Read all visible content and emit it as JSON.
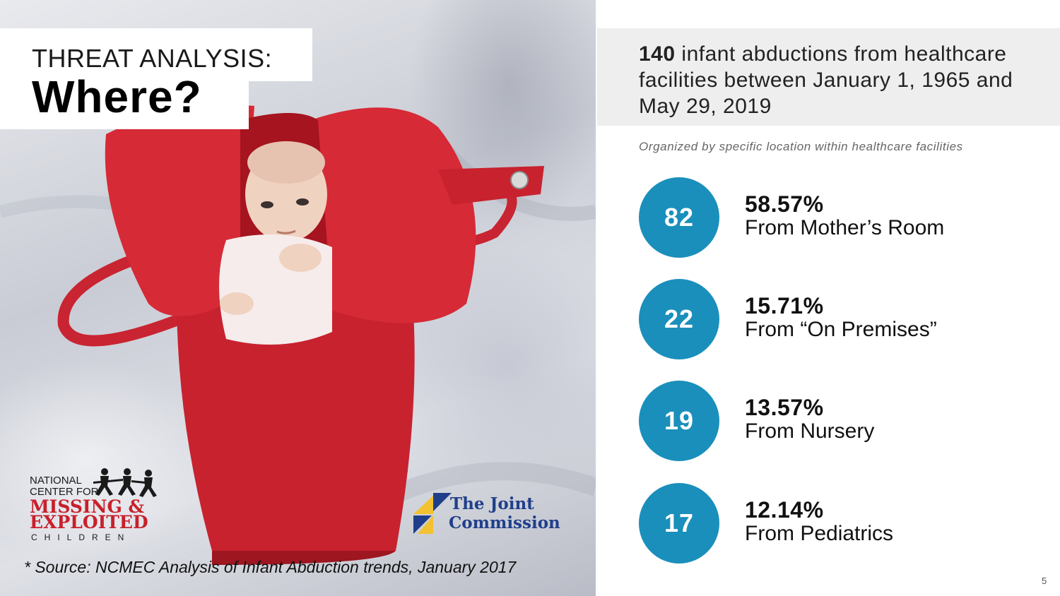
{
  "title": {
    "line1": "THREAT ANALYSIS:",
    "line2": "Where?"
  },
  "header": {
    "count": "140",
    "text": " infant abductions from healthcare facilities between January 1, 1965 and May 29, 2019"
  },
  "subtitle": "Organized by specific location within healthcare facilities",
  "stats": [
    {
      "count": "82",
      "percent": "58.57%",
      "location": "From Mother’s Room"
    },
    {
      "count": "22",
      "percent": "15.71%",
      "location": "From “On Premises”"
    },
    {
      "count": "19",
      "percent": "13.57%",
      "location": "From Nursery"
    },
    {
      "count": "17",
      "percent": "12.14%",
      "location": "From Pediatrics"
    }
  ],
  "logos": {
    "ncmec": {
      "line1": "NATIONAL",
      "line2": "CENTER FOR",
      "line3": "MISSING &",
      "line4": "EXPLOITED",
      "line5": "CHILDREN"
    },
    "joint_commission": {
      "line1": "The Joint",
      "line2": "Commission"
    }
  },
  "source": "* Source: NCMEC Analysis of Infant Abduction trends, January 2017",
  "page_number": "5",
  "colors": {
    "circle": "#1a8fbb",
    "header_bg": "#eeeeef",
    "bag_red": "#d62a36"
  }
}
